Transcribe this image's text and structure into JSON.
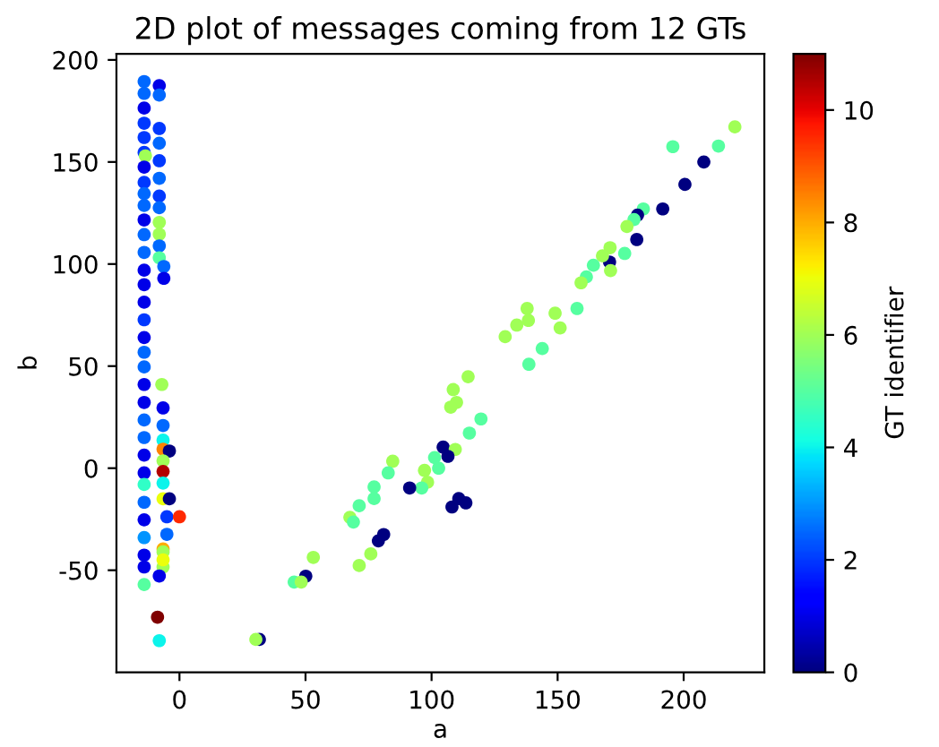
{
  "chart_data": {
    "type": "scatter",
    "title": "2D plot of messages coming from 12 GTs",
    "xlabel": "a",
    "ylabel": "b",
    "clabel": "GT identifier",
    "x": [
      220.3,
      195.7,
      213.8,
      208,
      200.5,
      191.7,
      184,
      181.7,
      180.3,
      177.5,
      181.4,
      176.6,
      170.8,
      170.6,
      171,
      167.8,
      164.2,
      161.4,
      159.3,
      157.7,
      151,
      149,
      137.9,
      138.4,
      133.8,
      129.2,
      143.9,
      138.6,
      114.5,
      108.6,
      109.9,
      107.6,
      119.6,
      115,
      104.6,
      109.4,
      106.5,
      101.2,
      84.6,
      82.8,
      97.2,
      102.8,
      98.4,
      96.1,
      91.3,
      77.2,
      77.2,
      71.3,
      67.6,
      69,
      110.8,
      113.6,
      108.1,
      81,
      78.9,
      75.9,
      71.3,
      53.1,
      50.1,
      45.5,
      48.3,
      31.7,
      30.3,
      -14,
      -14,
      -14,
      -14,
      -14,
      -14,
      -13.5,
      -14,
      -14,
      -14,
      -14,
      -14,
      -14,
      -14,
      -14,
      -14,
      -14,
      -14,
      -14,
      -14,
      -14,
      -14,
      -14,
      -14,
      -14,
      -14,
      -14,
      -14,
      -14,
      -14,
      -14,
      -14,
      -14,
      -14,
      -8.7,
      -8,
      -8,
      -8,
      -8,
      -8,
      -8,
      -8,
      -8,
      -8,
      -8,
      -8,
      -8,
      -8,
      -6.2,
      -6.2,
      -7,
      -6.5,
      -6.5,
      -6.5,
      -6.5,
      -4,
      -6.5,
      -6.5,
      -6.5,
      -6.5,
      -4,
      -5,
      0,
      -5,
      -6.5,
      -6.5,
      -6.5,
      -6.5,
      -8
    ],
    "values": [
      167.2,
      157.5,
      157.8,
      150,
      139,
      127,
      127,
      124,
      121.8,
      118.4,
      112,
      105.2,
      108,
      101,
      96.8,
      104,
      99.4,
      93.7,
      90.8,
      78.2,
      68.7,
      75.9,
      78.2,
      72.4,
      70.1,
      64.4,
      58.6,
      50.9,
      44.8,
      38.5,
      32.2,
      29.9,
      24.1,
      17.2,
      10.3,
      9.2,
      5.8,
      5.2,
      3.4,
      -2.3,
      -1.1,
      0,
      -6.9,
      -9.7,
      -9.7,
      -9.2,
      -14.9,
      -18.4,
      -24.1,
      -26.4,
      -14.9,
      -17,
      -19,
      -32.5,
      -35.6,
      -42,
      -47.7,
      -43.7,
      -52.9,
      -55.8,
      -55.8,
      -83.9,
      -83.9,
      189.4,
      183.6,
      176.4,
      169,
      162,
      154.7,
      153,
      147.5,
      140,
      134.5,
      128.7,
      121.6,
      114.4,
      105.7,
      97,
      89.9,
      81.3,
      72.7,
      64,
      56.8,
      49.6,
      41,
      32.2,
      23.6,
      15,
      6.4,
      -2.3,
      -8,
      -16.7,
      -25.3,
      -34,
      -42.6,
      -48.4,
      -57,
      -73,
      -84.5,
      187.4,
      182.8,
      166.4,
      159.2,
      150.6,
      142,
      133.3,
      127.6,
      120.4,
      114.6,
      108.9,
      103.1,
      98.8,
      93,
      41,
      29.5,
      20.9,
      13.7,
      9.3,
      8.4,
      3.6,
      -1.6,
      -7.3,
      -15,
      -15,
      -23.8,
      -23.8,
      -32.4,
      -39.6,
      -41,
      -48.4,
      -44.9,
      -52.8
    ],
    "cvalues": [
      6,
      5,
      5,
      0,
      0,
      0,
      5,
      0,
      5,
      6,
      0,
      5,
      6,
      0,
      6,
      6,
      5,
      5,
      6,
      5,
      6,
      6,
      6,
      6,
      6,
      6,
      5,
      5,
      6,
      6,
      6,
      6,
      5,
      5,
      0,
      6,
      0,
      5,
      6,
      5,
      6,
      5,
      6,
      5,
      0,
      5,
      5,
      5,
      6,
      5,
      0,
      0,
      0,
      0,
      0,
      6,
      6,
      6,
      0,
      5,
      6,
      0,
      6,
      2.5,
      2.5,
      1,
      2,
      2,
      2,
      6,
      1,
      2,
      2.5,
      2.5,
      1,
      2.5,
      2.5,
      1,
      1,
      1,
      2,
      1,
      2.5,
      2.5,
      1,
      1,
      2.5,
      2.5,
      1,
      1,
      4.5,
      2.5,
      1,
      3,
      1,
      1,
      5,
      11,
      4,
      1,
      2.5,
      2,
      2.5,
      2,
      2.5,
      2,
      2.5,
      6,
      6,
      2.5,
      5,
      2.5,
      1,
      6,
      1,
      2.5,
      4,
      8.5,
      0,
      6,
      10.5,
      4,
      7,
      0,
      2,
      9.5,
      2.5,
      8,
      6,
      6,
      7,
      1
    ],
    "xlim": [
      -25,
      232
    ],
    "ylim": [
      -100,
      203
    ],
    "xticks": [
      0,
      50,
      100,
      150,
      200
    ],
    "yticks": [
      -50,
      0,
      50,
      100,
      150,
      200
    ],
    "clim": [
      0,
      11
    ],
    "cticks": [
      0,
      2,
      4,
      6,
      8,
      10
    ],
    "marker": "circle",
    "grid": false
  }
}
